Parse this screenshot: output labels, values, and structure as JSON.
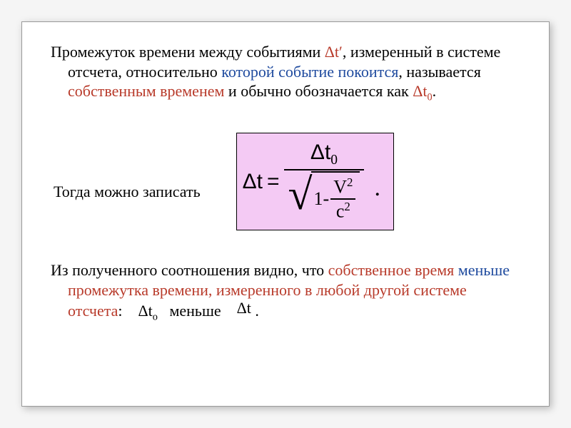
{
  "colors": {
    "background": "#ffffff",
    "text": "#000000",
    "accent_red": "#b83a2a",
    "accent_blue": "#1e4a9e",
    "formula_bg": "#f4caf4",
    "formula_border": "#000000",
    "slide_border": "#9a9a9a"
  },
  "typography": {
    "font_family": "Times New Roman",
    "body_fontsize": 22,
    "formula_fontsize": 30
  },
  "para1": {
    "seg1": "Промежуток времени между событиями ",
    "dt_prime": "Δt′",
    "seg2": ", измеренный в системе отсчета, относительно ",
    "seg3_blue": "которой событие покоится",
    "seg4": ", называется ",
    "seg5_red": "собственным временем",
    "seg6": " и обычно обозначается как ",
    "dt0": "Δt",
    "dt0_sub": "0",
    "seg7": "."
  },
  "para2": {
    "text": "Тогда можно записать"
  },
  "formula": {
    "lhs_delta_t": "Δt",
    "equals": "=",
    "numerator_delta_t": "Δt",
    "numerator_sub": "0",
    "one_minus": "1-",
    "v": "V",
    "v_exp": "2",
    "c": "c",
    "c_exp": "2",
    "period": "."
  },
  "para3": {
    "seg1": "Из полученного соотношения видно, что ",
    "seg2_red": "собственное время ",
    "seg3_blue": "меньше",
    "seg4_red": " промежутка времени, измеренного в любой другой системе отсчета",
    "seg5": ":    ",
    "dt0": "Δt",
    "dt0_sub": "о",
    "less": "меньше",
    "dt": "Δt",
    "seg_end": " ."
  }
}
